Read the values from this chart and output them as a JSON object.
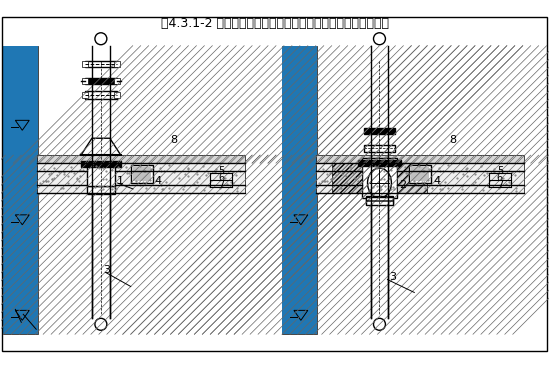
{
  "title": "图4.3.1-2 导流连体地漏或导流三通连体地漏不降板安装方式二",
  "title_fontsize": 9,
  "bg_color": "#ffffff",
  "line_color": "#000000",
  "hatch_color": "#555555",
  "wall_color": "#d4d4d4",
  "floor_color": "#c8c8c8",
  "label_color": "#000000",
  "fig_width": 5.5,
  "fig_height": 3.7,
  "dpi": 100
}
